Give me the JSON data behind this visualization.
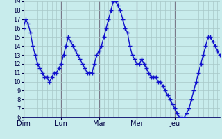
{
  "y_values": [
    16,
    17,
    16.5,
    15.5,
    14,
    13,
    12,
    11.5,
    11,
    10.5,
    10.5,
    10,
    10.5,
    11,
    11,
    11.5,
    12,
    13,
    14,
    15,
    14.5,
    14,
    13.5,
    13,
    12.5,
    12,
    11.5,
    11,
    11,
    11,
    12,
    13,
    13.5,
    14,
    15,
    16,
    17,
    18,
    19,
    19,
    18.5,
    18,
    17,
    16,
    15.5,
    14,
    13,
    12.5,
    12,
    12,
    12.5,
    12,
    11.5,
    11,
    10.5,
    10.5,
    10.5,
    10,
    10,
    9.5,
    9,
    8.5,
    8,
    7.5,
    7,
    6.5,
    6,
    6,
    6,
    6.5,
    7,
    8,
    9,
    10,
    11,
    12,
    13,
    14,
    15,
    15,
    14.5,
    14,
    13.5,
    13
  ],
  "day_labels": [
    "Dim",
    "Lun",
    "Mar",
    "Mer",
    "Jeu"
  ],
  "day_positions": [
    0,
    16,
    32,
    48,
    64
  ],
  "ylim_min": 6,
  "ylim_max": 19,
  "yticks": [
    6,
    7,
    8,
    9,
    10,
    11,
    12,
    13,
    14,
    15,
    16,
    17,
    18,
    19
  ],
  "line_color": "#1010cc",
  "marker_color": "#1010cc",
  "bg_color": "#c8ecec",
  "grid_major_x_color": "#7a7a8a",
  "grid_minor_color": "#a8c8c8",
  "grid_major_y_color": "#a8c8c8",
  "line_width": 1.0,
  "marker_size": 4,
  "tick_label_fontsize": 6.0,
  "xtick_fontsize": 7.0
}
